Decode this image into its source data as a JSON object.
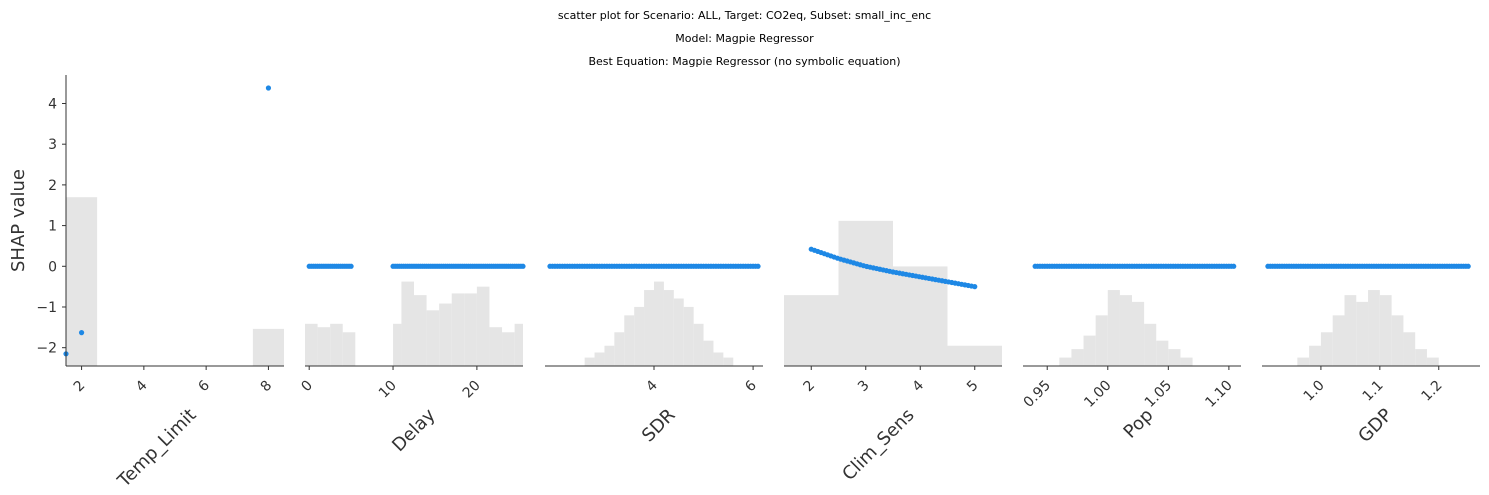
{
  "header": {
    "title": "scatter plot for Scenario: ALL, Target: CO2eq, Subset: small_inc_enc",
    "model_line": "Model: Magpie Regressor",
    "equation_line": "Best Equation: Magpie Regressor (no symbolic equation)"
  },
  "chart_data": {
    "type": "scatter",
    "ylabel": "SHAP value",
    "ylim": [
      -2.45,
      4.7
    ],
    "yticks": [
      -2,
      -1,
      0,
      1,
      2,
      3,
      4
    ],
    "ytick_labels": [
      "−2",
      "−1",
      "0",
      "1",
      "2",
      "3",
      "4"
    ],
    "colors": {
      "points": "#1e88e5",
      "histogram": "#e5e5e5",
      "axis": "#333333"
    },
    "panels": [
      {
        "name": "Temp_Limit",
        "xlabel": "Temp_Limit",
        "xlim": [
          1.5,
          8.5
        ],
        "xticks": [
          2,
          4,
          6,
          8
        ],
        "xtick_labels": [
          "2",
          "4",
          "6",
          "8"
        ],
        "points": [
          [
            1.5,
            -2.15
          ],
          [
            2.0,
            -1.63
          ],
          [
            8.0,
            4.38
          ]
        ],
        "hist": [
          [
            1.5,
            2.5,
            1.0
          ],
          [
            7.5,
            8.5,
            0.22
          ]
        ]
      },
      {
        "name": "Delay",
        "xlabel": "Delay",
        "xlim": [
          -0.5,
          25.5
        ],
        "xticks": [
          0,
          10,
          20
        ],
        "xtick_labels": [
          "0",
          "10",
          "20"
        ],
        "point_runs": [
          {
            "from": 0,
            "to": 5,
            "step": 0.25,
            "y": 0
          },
          {
            "from": 10,
            "to": 25.5,
            "step": 0.25,
            "y": 0
          }
        ],
        "hist": [
          [
            -0.5,
            1,
            0.25
          ],
          [
            1,
            2.5,
            0.23
          ],
          [
            2.5,
            4,
            0.25
          ],
          [
            4,
            5.5,
            0.2
          ],
          [
            10,
            11,
            0.25
          ],
          [
            11,
            12.5,
            0.5
          ],
          [
            12.5,
            14,
            0.42
          ],
          [
            14,
            15.5,
            0.33
          ],
          [
            15.5,
            17,
            0.37
          ],
          [
            17,
            18.5,
            0.43
          ],
          [
            18.5,
            20,
            0.43
          ],
          [
            20,
            21.5,
            0.47
          ],
          [
            21.5,
            23,
            0.23
          ],
          [
            23,
            24.5,
            0.2
          ],
          [
            24.5,
            25.5,
            0.25
          ]
        ]
      },
      {
        "name": "SDR",
        "xlabel": "SDR",
        "xlim": [
          1.8,
          6.2
        ],
        "xticks": [
          4,
          6
        ],
        "xtick_labels": [
          "4",
          "6"
        ],
        "point_runs": [
          {
            "from": 1.9,
            "to": 6.1,
            "step": 0.05,
            "y": 0
          }
        ],
        "hist": [
          [
            2.6,
            2.8,
            0.05
          ],
          [
            2.8,
            3.0,
            0.08
          ],
          [
            3.0,
            3.2,
            0.12
          ],
          [
            3.2,
            3.4,
            0.2
          ],
          [
            3.4,
            3.6,
            0.3
          ],
          [
            3.6,
            3.8,
            0.35
          ],
          [
            3.8,
            4.0,
            0.45
          ],
          [
            4.0,
            4.2,
            0.5
          ],
          [
            4.2,
            4.4,
            0.45
          ],
          [
            4.4,
            4.6,
            0.4
          ],
          [
            4.6,
            4.8,
            0.35
          ],
          [
            4.8,
            5.0,
            0.25
          ],
          [
            5.0,
            5.2,
            0.15
          ],
          [
            5.2,
            5.4,
            0.08
          ],
          [
            5.4,
            5.6,
            0.05
          ]
        ]
      },
      {
        "name": "Clim_Sens",
        "xlabel": "Clim_Sens",
        "xlim": [
          1.5,
          5.5
        ],
        "xticks": [
          2,
          3,
          4,
          5
        ],
        "xtick_labels": [
          "2",
          "3",
          "4",
          "5"
        ],
        "curve": {
          "from": 2.0,
          "to": 5.0,
          "step": 0.06,
          "values": [
            [
              2.0,
              0.42
            ],
            [
              2.5,
              0.19
            ],
            [
              3.0,
              0.0
            ],
            [
              3.5,
              -0.14
            ],
            [
              4.0,
              -0.26
            ],
            [
              4.5,
              -0.38
            ],
            [
              5.0,
              -0.5
            ]
          ]
        },
        "hist": [
          [
            1.5,
            2.5,
            0.42
          ],
          [
            2.5,
            3.5,
            0.86
          ],
          [
            3.5,
            4.5,
            0.59
          ],
          [
            4.5,
            5.5,
            0.12
          ]
        ]
      },
      {
        "name": "Pop",
        "xlabel": "Pop",
        "xlim": [
          0.93,
          1.11
        ],
        "xticks": [
          0.95,
          1.0,
          1.05,
          1.1
        ],
        "xtick_labels": [
          "0.95",
          "1.00",
          "1.05",
          "1.10"
        ],
        "point_runs": [
          {
            "from": 0.94,
            "to": 1.105,
            "step": 0.002,
            "y": 0
          }
        ],
        "hist": [
          [
            0.96,
            0.97,
            0.05
          ],
          [
            0.97,
            0.98,
            0.1
          ],
          [
            0.98,
            0.99,
            0.18
          ],
          [
            0.99,
            1.0,
            0.3
          ],
          [
            1.0,
            1.01,
            0.45
          ],
          [
            1.01,
            1.02,
            0.42
          ],
          [
            1.02,
            1.03,
            0.38
          ],
          [
            1.03,
            1.04,
            0.25
          ],
          [
            1.04,
            1.05,
            0.15
          ],
          [
            1.05,
            1.06,
            0.1
          ],
          [
            1.06,
            1.07,
            0.05
          ]
        ]
      },
      {
        "name": "GDP",
        "xlabel": "GDP",
        "xlim": [
          0.9,
          1.27
        ],
        "xticks": [
          1.0,
          1.1,
          1.2
        ],
        "xtick_labels": [
          "1.0",
          "1.1",
          "1.2"
        ],
        "point_runs": [
          {
            "from": 0.91,
            "to": 1.25,
            "step": 0.004,
            "y": 0
          }
        ],
        "hist": [
          [
            0.96,
            0.98,
            0.05
          ],
          [
            0.98,
            1.0,
            0.12
          ],
          [
            1.0,
            1.02,
            0.2
          ],
          [
            1.02,
            1.04,
            0.3
          ],
          [
            1.04,
            1.06,
            0.42
          ],
          [
            1.06,
            1.08,
            0.38
          ],
          [
            1.08,
            1.1,
            0.45
          ],
          [
            1.1,
            1.12,
            0.42
          ],
          [
            1.12,
            1.14,
            0.3
          ],
          [
            1.14,
            1.16,
            0.2
          ],
          [
            1.16,
            1.18,
            0.1
          ],
          [
            1.18,
            1.2,
            0.05
          ]
        ]
      }
    ]
  }
}
